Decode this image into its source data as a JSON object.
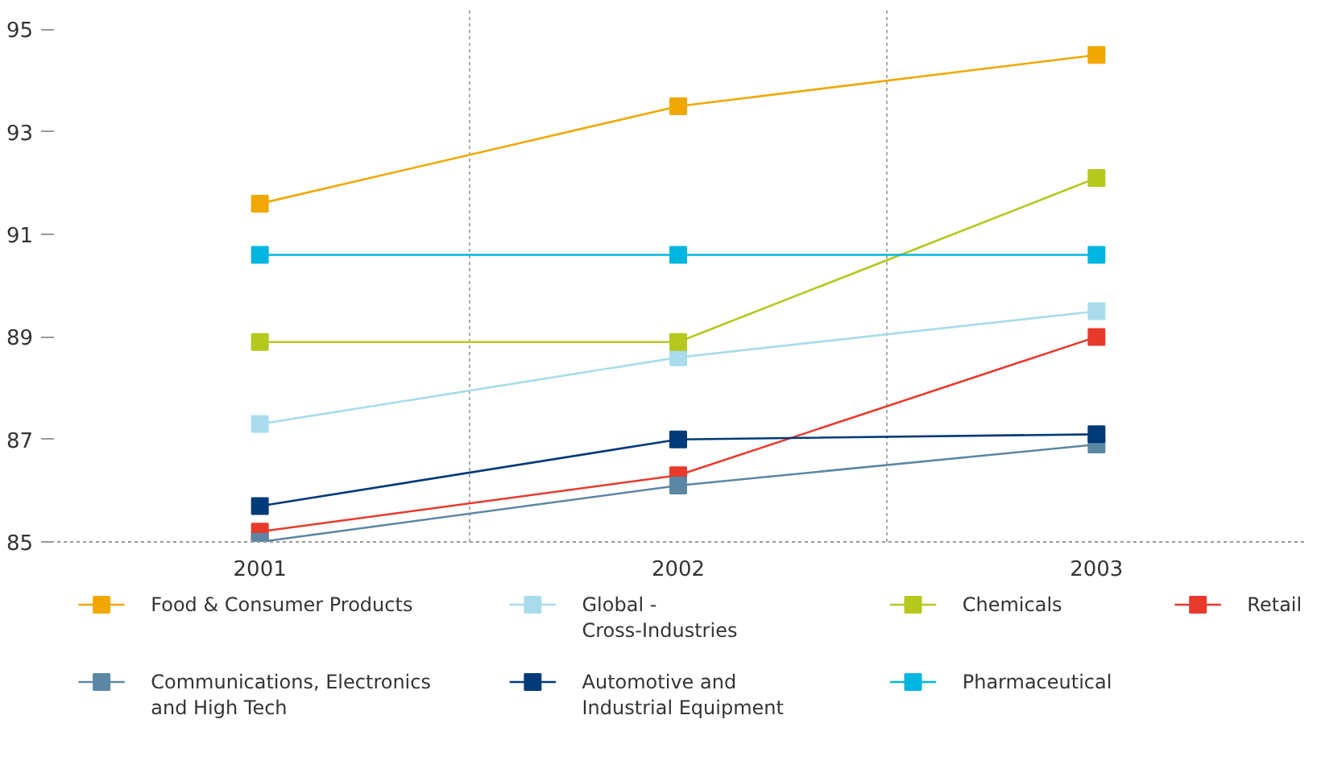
{
  "chart_data": {
    "type": "line",
    "categories": [
      "2001",
      "2002",
      "2003"
    ],
    "ylim": [
      85,
      95.4
    ],
    "yticks": [
      85,
      87,
      89,
      91,
      93,
      95
    ],
    "grid": "x",
    "legend": "bottom",
    "marker": "square",
    "line_style": "solid",
    "series": [
      {
        "name": "Food & Consumer Products",
        "color": "#f0a800",
        "values": [
          91.6,
          93.5,
          94.5
        ]
      },
      {
        "name": "Global - Cross-Industries",
        "color": "#a8dced",
        "values": [
          87.3,
          88.6,
          89.5
        ]
      },
      {
        "name": "Chemicals",
        "color": "#b5c81e",
        "values": [
          88.9,
          88.9,
          92.1
        ]
      },
      {
        "name": "Retail",
        "color": "#e8392b",
        "values": [
          85.2,
          86.3,
          89.0
        ]
      },
      {
        "name": "Communications, Electronics and High Tech",
        "color": "#5b87a5",
        "values": [
          85.0,
          86.1,
          86.9
        ]
      },
      {
        "name": "Automotive and Industrial Equipment",
        "color": "#003a78",
        "values": [
          85.7,
          87.0,
          87.1
        ]
      },
      {
        "name": "Pharmaceutical",
        "color": "#00b6e0",
        "values": [
          90.6,
          90.6,
          90.6
        ]
      }
    ]
  }
}
